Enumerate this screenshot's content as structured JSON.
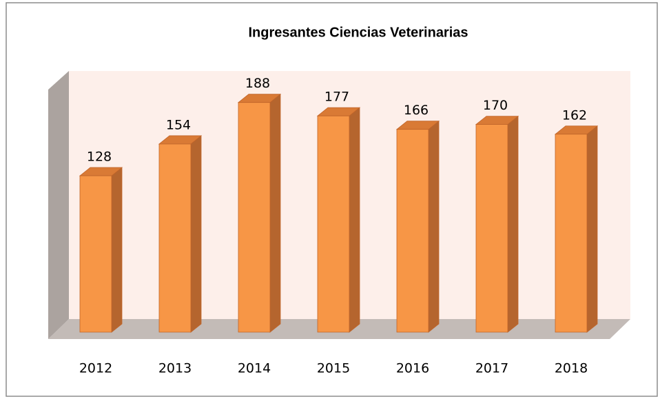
{
  "chart_data": {
    "type": "bar3d",
    "title": "Ingresantes Ciencias Veterinarias",
    "categories": [
      "2012",
      "2013",
      "2014",
      "2015",
      "2016",
      "2017",
      "2018"
    ],
    "values": [
      128,
      154,
      188,
      177,
      166,
      170,
      162
    ],
    "color": "#f79646"
  }
}
